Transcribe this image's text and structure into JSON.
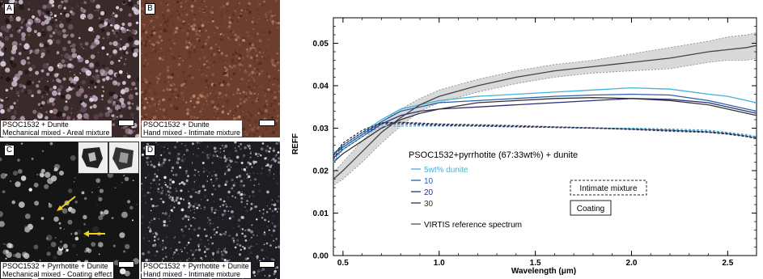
{
  "panels": [
    {
      "letter": "A",
      "caption_line1": "PSOC1532 + Dunite",
      "caption_line2": "Mechanical mixed - Areal mixture"
    },
    {
      "letter": "B",
      "caption_line1": "PSOC1532 + Dunite",
      "caption_line2": "Hand mixed - Intimate mixture"
    },
    {
      "letter": "C",
      "caption_line1": "PSOC1532 + Pyrrhotite + Dunite",
      "caption_line2": "Mechanical mixed - Coating effect"
    },
    {
      "letter": "D",
      "caption_line1": "PSOC1532 + Pyrrhotite + Dunite",
      "caption_line2": "Hand mixed - Intimate mixture"
    }
  ],
  "chart_data": {
    "type": "line",
    "xlabel": "Wavelength (μm)",
    "ylabel": "REFF",
    "xlim": [
      0.45,
      2.65
    ],
    "ylim": [
      0.0,
      0.056
    ],
    "xticks": [
      "0.5",
      "1.0",
      "1.5",
      "2.0",
      "2.5"
    ],
    "xtick_values": [
      0.5,
      1.0,
      1.5,
      2.0,
      2.5
    ],
    "yticks": [
      "0.00",
      "0.01",
      "0.02",
      "0.03",
      "0.04",
      "0.05"
    ],
    "ytick_values": [
      0.0,
      0.01,
      0.02,
      0.03,
      0.04,
      0.05
    ],
    "legend_title": "PSOC1532+pyrrhotite (67:33wt%) + dunite",
    "legend_reference": "VIRTIS reference spectrum",
    "legend_box_dashed": "Intimate mixture",
    "legend_box_solid": "Coating",
    "x": [
      0.45,
      0.5,
      0.6,
      0.7,
      0.8,
      0.9,
      1.0,
      1.2,
      1.4,
      1.6,
      1.8,
      2.0,
      2.2,
      2.4,
      2.5,
      2.6,
      2.65
    ],
    "series": [
      {
        "name": "5wt% dunite",
        "color": "#3fb3d6",
        "style": "coating",
        "values": [
          0.024,
          0.026,
          0.029,
          0.032,
          0.0345,
          0.0355,
          0.0365,
          0.0375,
          0.038,
          0.0385,
          0.039,
          0.0395,
          0.0392,
          0.038,
          0.0375,
          0.0365,
          0.036
        ]
      },
      {
        "name": "10",
        "color": "#2d5fa8",
        "style": "coating",
        "values": [
          0.024,
          0.0255,
          0.0285,
          0.0315,
          0.034,
          0.035,
          0.036,
          0.0365,
          0.037,
          0.0375,
          0.0378,
          0.038,
          0.0378,
          0.0365,
          0.0355,
          0.0345,
          0.034
        ]
      },
      {
        "name": "20",
        "color": "#2b2f78",
        "style": "coating",
        "values": [
          0.023,
          0.025,
          0.028,
          0.031,
          0.033,
          0.034,
          0.0345,
          0.035,
          0.0355,
          0.036,
          0.0365,
          0.037,
          0.0368,
          0.036,
          0.035,
          0.034,
          0.0335
        ]
      },
      {
        "name": "30",
        "color": "#333333",
        "style": "coating",
        "values": [
          0.022,
          0.024,
          0.027,
          0.03,
          0.032,
          0.0335,
          0.0345,
          0.036,
          0.0365,
          0.037,
          0.0372,
          0.037,
          0.0365,
          0.0355,
          0.0345,
          0.0335,
          0.033
        ]
      },
      {
        "name": "5wt% dunite",
        "color": "#3fb3d6",
        "style": "intimate",
        "values": [
          0.022,
          0.025,
          0.028,
          0.0305,
          0.0305,
          0.0305,
          0.0305,
          0.0305,
          0.0303,
          0.0302,
          0.03,
          0.03,
          0.0298,
          0.0295,
          0.029,
          0.0285,
          0.028
        ]
      },
      {
        "name": "10",
        "color": "#2d5fa8",
        "style": "intimate",
        "values": [
          0.0225,
          0.0255,
          0.0285,
          0.031,
          0.031,
          0.0308,
          0.0306,
          0.0305,
          0.0303,
          0.0302,
          0.03,
          0.0298,
          0.0295,
          0.0292,
          0.0288,
          0.0282,
          0.0278
        ]
      },
      {
        "name": "20",
        "color": "#2b2f78",
        "style": "intimate",
        "values": [
          0.023,
          0.026,
          0.029,
          0.0312,
          0.0313,
          0.031,
          0.0308,
          0.0306,
          0.0304,
          0.0302,
          0.03,
          0.0297,
          0.0293,
          0.029,
          0.0286,
          0.028,
          0.0275
        ]
      },
      {
        "name": "30",
        "color": "#333333",
        "style": "intimate",
        "values": [
          0.0235,
          0.0265,
          0.0295,
          0.0313,
          0.0314,
          0.0312,
          0.031,
          0.0308,
          0.0306,
          0.0303,
          0.0301,
          0.0298,
          0.0295,
          0.0291,
          0.0287,
          0.0281,
          0.0276
        ]
      }
    ],
    "reference": {
      "name": "VIRTIS reference spectrum",
      "color": "#444444",
      "band_color": "#d9d9d9",
      "values": [
        0.018,
        0.02,
        0.0245,
        0.029,
        0.0325,
        0.0355,
        0.0375,
        0.04,
        0.042,
        0.0435,
        0.0445,
        0.0455,
        0.0465,
        0.048,
        0.0485,
        0.049,
        0.0495
      ],
      "upper": [
        0.0195,
        0.022,
        0.027,
        0.0315,
        0.0345,
        0.037,
        0.039,
        0.0415,
        0.0435,
        0.045,
        0.046,
        0.0475,
        0.049,
        0.0505,
        0.0515,
        0.052,
        0.0525
      ],
      "lower": [
        0.0165,
        0.018,
        0.022,
        0.0265,
        0.0305,
        0.034,
        0.036,
        0.0385,
        0.0405,
        0.042,
        0.043,
        0.0435,
        0.044,
        0.0455,
        0.046,
        0.046,
        0.0465
      ]
    }
  }
}
